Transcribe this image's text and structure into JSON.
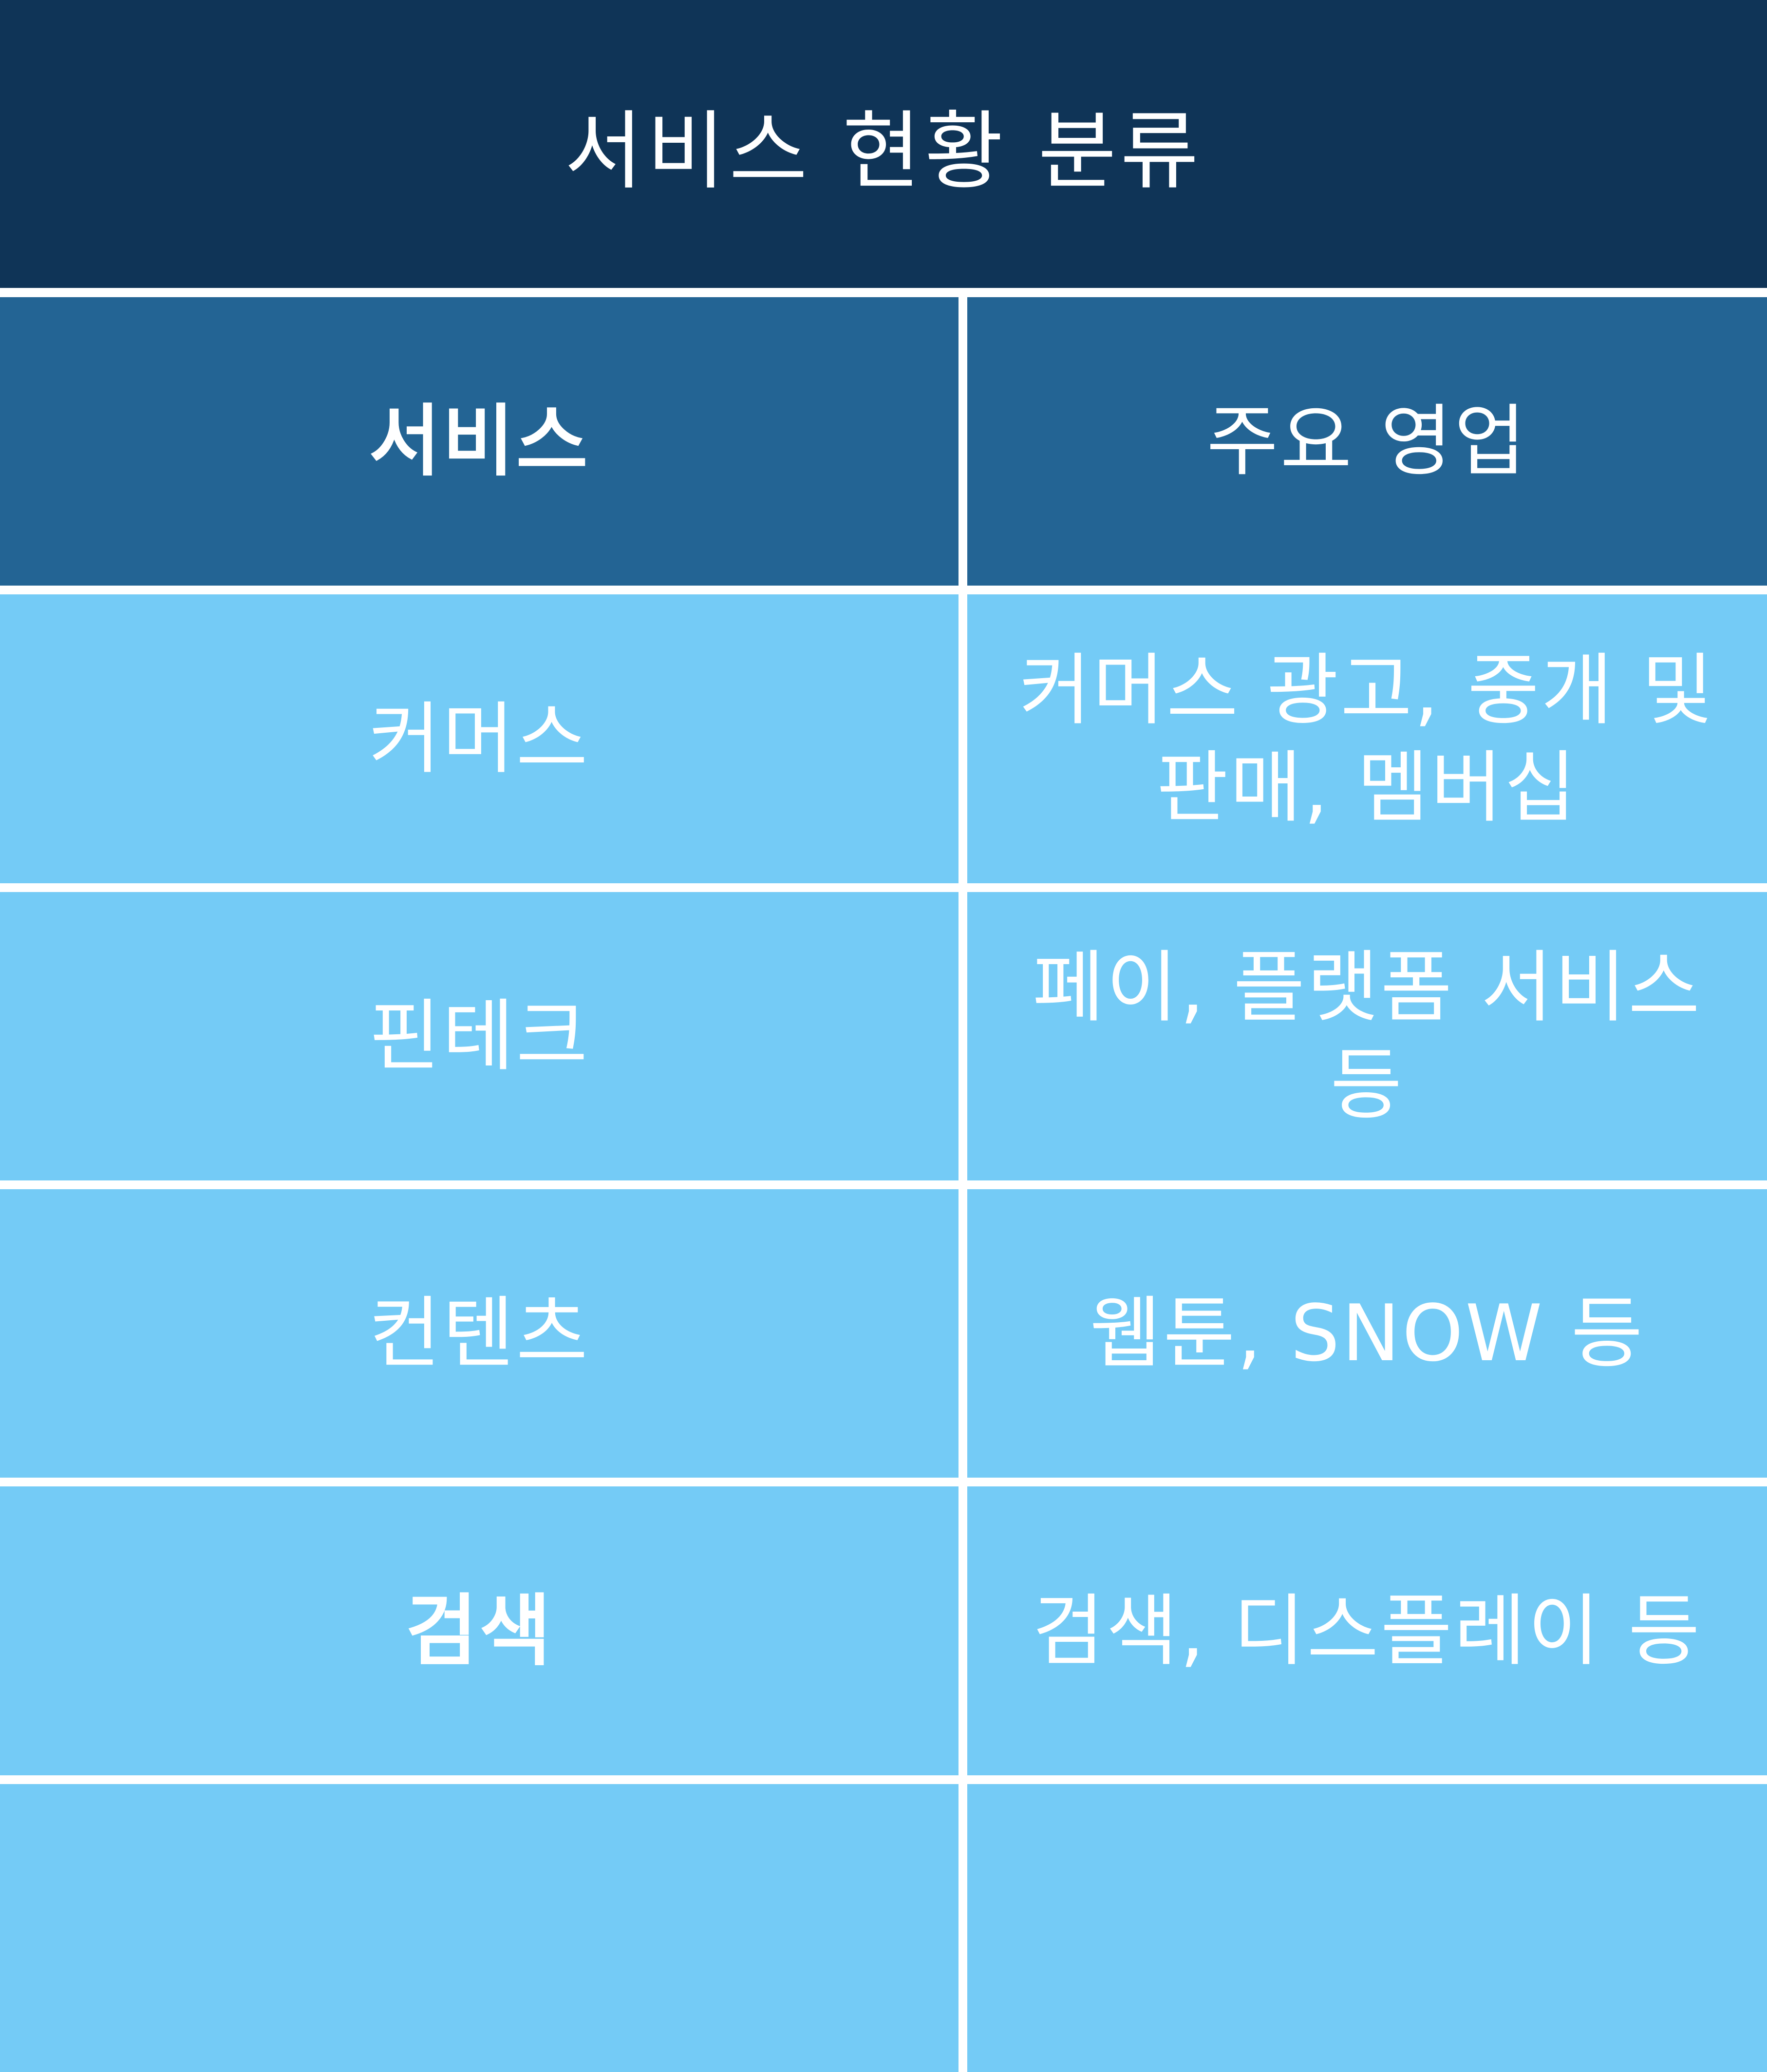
{
  "title": "서비스 현황 분류",
  "colors": {
    "title_bg": "#0f3457",
    "header_bg": "#236494",
    "body_bg": "#74cbf6",
    "divider": "#ffffff",
    "text": "#ffffff"
  },
  "table": {
    "headers": [
      "서비스",
      "주요 영업"
    ],
    "rows": [
      {
        "service": "커머스",
        "business": "커머스 광고, 중개 및 판매, 멤버십"
      },
      {
        "service": "핀테크",
        "business": "페이, 플랫폼 서비스 등"
      },
      {
        "service": "컨텐츠",
        "business": "웹툰, SNOW 등"
      },
      {
        "service": "검색",
        "business": "검색, 디스플레이 등"
      },
      {
        "service": "",
        "business": ""
      }
    ]
  }
}
